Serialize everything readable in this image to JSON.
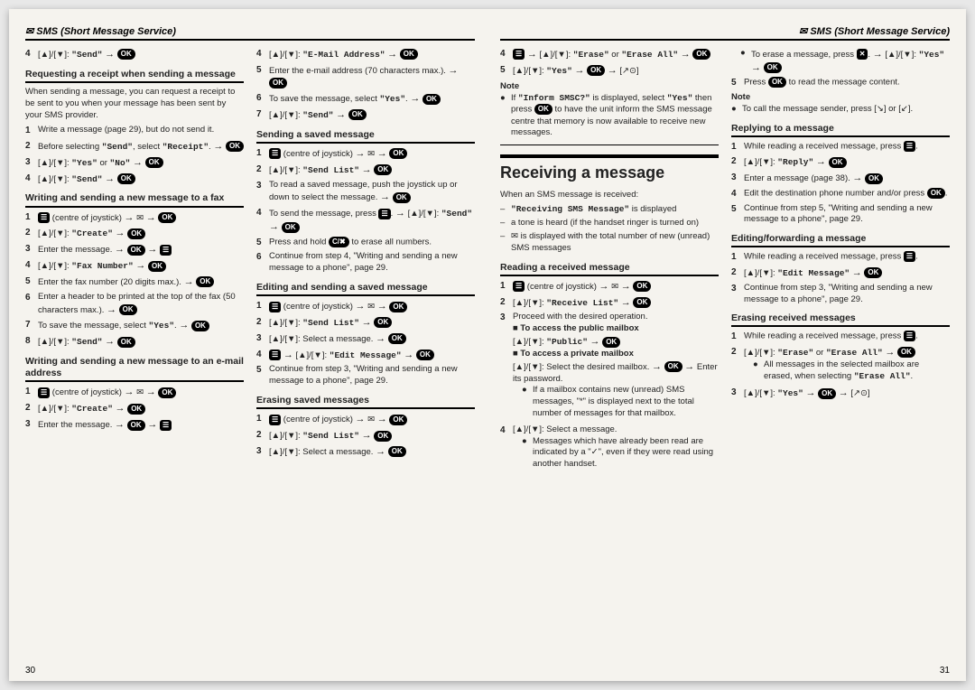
{
  "header_left": "✉ SMS (Short Message Service)",
  "header_right": "✉ SMS (Short Message Service)",
  "page_left_num": "30",
  "page_right_num": "31",
  "btn_ok": "OK",
  "btn_menu": "☰",
  "btn_x": "✕",
  "btn_c": "C/✖",
  "arrow": "→",
  "nav": "[▲]/[▼]:",
  "left": {
    "col1": {
      "s4": "4",
      "s4_text_a": "\"Send\"",
      "sec1_title": "Requesting a receipt when sending a message",
      "sec1_intro": "When sending a message, you can request a receipt to be sent to you when your message has been sent by your SMS provider.",
      "sec1_1": "1",
      "sec1_1t": "Write a message (page 29), but do not send it.",
      "sec1_2": "2",
      "sec1_2t_a": "Before selecting ",
      "sec1_2t_b": "\"Send\"",
      "sec1_2t_c": ", select ",
      "sec1_2t_d": "\"Receipt\"",
      "sec1_3": "3",
      "sec1_3a": "\"Yes\"",
      "sec1_3b": " or ",
      "sec1_3c": "\"No\"",
      "sec1_4": "4",
      "sec1_4a": "\"Send\"",
      "sec2_title": "Writing and sending a new message to a fax",
      "sec2_1": "1",
      "sec2_1t": " (centre of joystick) ",
      "sec2_2": "2",
      "sec2_2a": "\"Create\"",
      "sec2_3": "3",
      "sec2_3t": "Enter the message. ",
      "sec2_4": "4",
      "sec2_4a": "\"Fax Number\"",
      "sec2_5": "5",
      "sec2_5t": "Enter the fax number (20 digits max.). ",
      "sec2_6": "6",
      "sec2_6t": "Enter a header to be printed at the top of the fax (50 characters max.). ",
      "sec2_7": "7",
      "sec2_7t": "To save the message, select ",
      "sec2_7a": "\"Yes\"",
      "sec2_8": "8",
      "sec2_8a": "\"Send\"",
      "sec3_title": "Writing and sending a new message to an e-mail address",
      "sec3_1": "1",
      "sec3_1t": " (centre of joystick) ",
      "sec3_2": "2",
      "sec3_2a": "\"Create\"",
      "sec3_3": "3",
      "sec3_3t": "Enter the message. "
    },
    "col2": {
      "s4": "4",
      "s4a": "\"E-Mail Address\"",
      "s5": "5",
      "s5t": "Enter the e-mail address (70 characters max.). ",
      "s6": "6",
      "s6t": "To save the message, select ",
      "s6a": "\"Yes\"",
      "s7": "7",
      "s7a": "\"Send\"",
      "sec1_title": "Sending a saved message",
      "sec1_1": "1",
      "sec1_1t": " (centre of joystick) ",
      "sec1_2": "2",
      "sec1_2a": "\"Send List\"",
      "sec1_3": "3",
      "sec1_3t": "To read a saved message, push the joystick up or down to select the message. ",
      "sec1_4": "4",
      "sec1_4t": "To send the message, press ",
      "sec1_4a": "\"Send\"",
      "sec1_5": "5",
      "sec1_5t": "Press and hold ",
      "sec1_5t2": " to erase all numbers.",
      "sec1_6": "6",
      "sec1_6t": "Continue from step 4, \"Writing and sending a new message to a phone\", page 29.",
      "sec2_title": "Editing and sending a saved message",
      "sec2_1": "1",
      "sec2_1t": " (centre of joystick) ",
      "sec2_2": "2",
      "sec2_2a": "\"Send List\"",
      "sec2_3": "3",
      "sec2_3t": " Select a message. ",
      "sec2_4": "4",
      "sec2_4a": "\"Edit Message\"",
      "sec2_5": "5",
      "sec2_5t": "Continue from step 3, \"Writing and sending a new message to a phone\", page 29.",
      "sec3_title": "Erasing saved messages",
      "sec3_1": "1",
      "sec3_1t": " (centre of joystick) ",
      "sec3_2": "2",
      "sec3_2a": "\"Send List\"",
      "sec3_3": "3",
      "sec3_3t": " Select a message. "
    }
  },
  "right": {
    "col1": {
      "s4": "4",
      "s4a": "\"Erase\"",
      "s4b": " or ",
      "s4c": "\"Erase All\"",
      "s5": "5",
      "s5a": "\"Yes\"",
      "s5b": "[↗⊙]",
      "note": "Note",
      "note1a": "If ",
      "note1b": "\"Inform SMSC?\"",
      "note1c": " is displayed, select ",
      "note1d": "\"Yes\"",
      "note1e": " then press ",
      "note1f": " to have the unit inform the SMS message centre that memory is now available to receive new messages.",
      "main_title": "Receiving a message",
      "intro": "When an SMS message is received:",
      "b1a": "\"Receiving SMS Message\"",
      "b1b": " is displayed",
      "b2": "a tone is heard (if the handset ringer is turned on)",
      "b3": "✉ is displayed with the total number of new (unread) SMS messages",
      "sec1_title": "Reading a received message",
      "sec1_1": "1",
      "sec1_1t": " (centre of joystick) ",
      "sec1_2": "2",
      "sec1_2a": "\"Receive List\"",
      "sec1_3": "3",
      "sec1_3t": "Proceed with the desired operation.",
      "sec1_3_h1": "■ To access the public mailbox",
      "sec1_3_h1a": "\"Public\"",
      "sec1_3_h2": "■ To access a private mailbox",
      "sec1_3_h2t": " Select the desired mailbox. ",
      "sec1_3_h2t2": " Enter its password.",
      "sec1_3_b1": "If a mailbox contains new (unread) SMS messages, \"*\" is displayed next to the total number of messages for that mailbox.",
      "sec1_4": "4",
      "sec1_4t": " Select a message.",
      "sec1_4_b1": "Messages which have already been read are indicated by a \"✓\", even if they were read using another handset."
    },
    "col2": {
      "b1a": "To erase a message, press ",
      "b1b": ".",
      "b1c": "\"Yes\"",
      "s5": "5",
      "s5t": "Press ",
      "s5t2": " to read the message content.",
      "note": "Note",
      "note1": "To call the message sender, press [↘] or [↙].",
      "sec1_title": "Replying to a message",
      "sec1_1": "1",
      "sec1_1t": "While reading a received message, press ",
      "sec1_2": "2",
      "sec1_2a": "\"Reply\"",
      "sec1_3": "3",
      "sec1_3t": "Enter a message (page 38). ",
      "sec1_4": "4",
      "sec1_4t": "Edit the destination phone number and/or press ",
      "sec1_5": "5",
      "sec1_5t": "Continue from step 5, \"Writing and sending a new message to a phone\", page 29.",
      "sec2_title": "Editing/forwarding a message",
      "sec2_1": "1",
      "sec2_1t": "While reading a received message, press ",
      "sec2_2": "2",
      "sec2_2a": "\"Edit Message\"",
      "sec2_3": "3",
      "sec2_3t": "Continue from step 3, \"Writing and sending a new message to a phone\", page 29.",
      "sec3_title": "Erasing received messages",
      "sec3_1": "1",
      "sec3_1t": "While reading a received message, press ",
      "sec3_2": "2",
      "sec3_2a": "\"Erase\"",
      "sec3_2b": " or ",
      "sec3_2c": "\"Erase All\"",
      "sec3_2_b1": "All messages in the selected mailbox are erased, when selecting ",
      "sec3_2_b1a": "\"Erase All\"",
      "sec3_3": "3",
      "sec3_3a": "\"Yes\"",
      "sec3_3b": "[↗⊙]"
    }
  }
}
